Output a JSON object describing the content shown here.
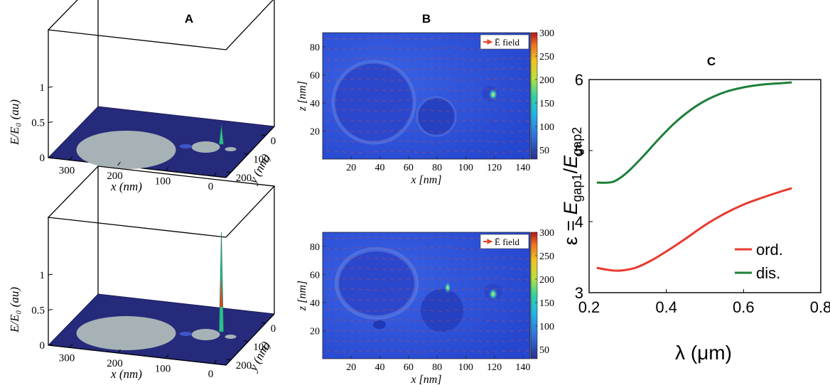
{
  "panels": {
    "a": {
      "letter": "A"
    },
    "b": {
      "letter": "B"
    },
    "c": {
      "letter": "C"
    }
  },
  "panel_a": {
    "zlabel": "E/E₀ (au)",
    "xlabel": "x (nm)",
    "ylabel": "y (nm)",
    "z_ticks": [
      "0",
      "0.5",
      "1"
    ],
    "x_ticks": [
      "300",
      "200",
      "100",
      "0"
    ],
    "y_ticks": [
      "200",
      "100",
      "0"
    ],
    "surface_color": "#262a7a",
    "disk_color": "#a7b2b6",
    "plots": [
      {
        "peak_fraction": 0.15
      },
      {
        "peak_fraction": 0.78
      }
    ]
  },
  "panel_b": {
    "xlabel": "x [nm]",
    "zlabel": "z [nm]",
    "legend": "Ē field",
    "x_ticks": [
      "20",
      "40",
      "60",
      "80",
      "100",
      "120",
      "140"
    ],
    "z_ticks": [
      "20",
      "40",
      "60",
      "80"
    ],
    "colorbar_ticks": [
      "300",
      "250",
      "200",
      "150",
      "100",
      "50"
    ],
    "colorbar_range": [
      30,
      300
    ],
    "background_color": "#2a4ad6",
    "arrow_color": "#e8452a"
  },
  "chart_data": {
    "type": "line",
    "title": "",
    "xlabel": "λ (μm)",
    "ylabel": "ε = E_gap1/E_gap2",
    "ylabel_parts": {
      "lhs": "ε = ",
      "e1": "E",
      "s1": "gap1",
      "slash": "/",
      "e2": "E",
      "s2": "gap2"
    },
    "xlim": [
      0.2,
      0.8
    ],
    "ylim": [
      3,
      6
    ],
    "x_ticks": [
      "0.2",
      "0.4",
      "0.6",
      "0.8"
    ],
    "y_ticks": [
      "3",
      "4",
      "5",
      "6"
    ],
    "legend_position": "bottom-right",
    "grid": false,
    "series": [
      {
        "name": "ord.",
        "color": "#e8392d",
        "x": [
          0.22,
          0.25,
          0.28,
          0.32,
          0.36,
          0.4,
          0.45,
          0.5,
          0.55,
          0.6,
          0.65,
          0.7,
          0.725
        ],
        "y": [
          3.35,
          3.32,
          3.31,
          3.35,
          3.45,
          3.58,
          3.76,
          3.95,
          4.11,
          4.24,
          4.34,
          4.43,
          4.47
        ]
      },
      {
        "name": "dis.",
        "color": "#1f7f3a",
        "x": [
          0.22,
          0.25,
          0.27,
          0.3,
          0.34,
          0.38,
          0.42,
          0.46,
          0.5,
          0.55,
          0.6,
          0.65,
          0.7,
          0.725
        ],
        "y": [
          4.55,
          4.55,
          4.58,
          4.7,
          4.92,
          5.16,
          5.38,
          5.56,
          5.7,
          5.82,
          5.89,
          5.93,
          5.95,
          5.96
        ]
      }
    ]
  }
}
